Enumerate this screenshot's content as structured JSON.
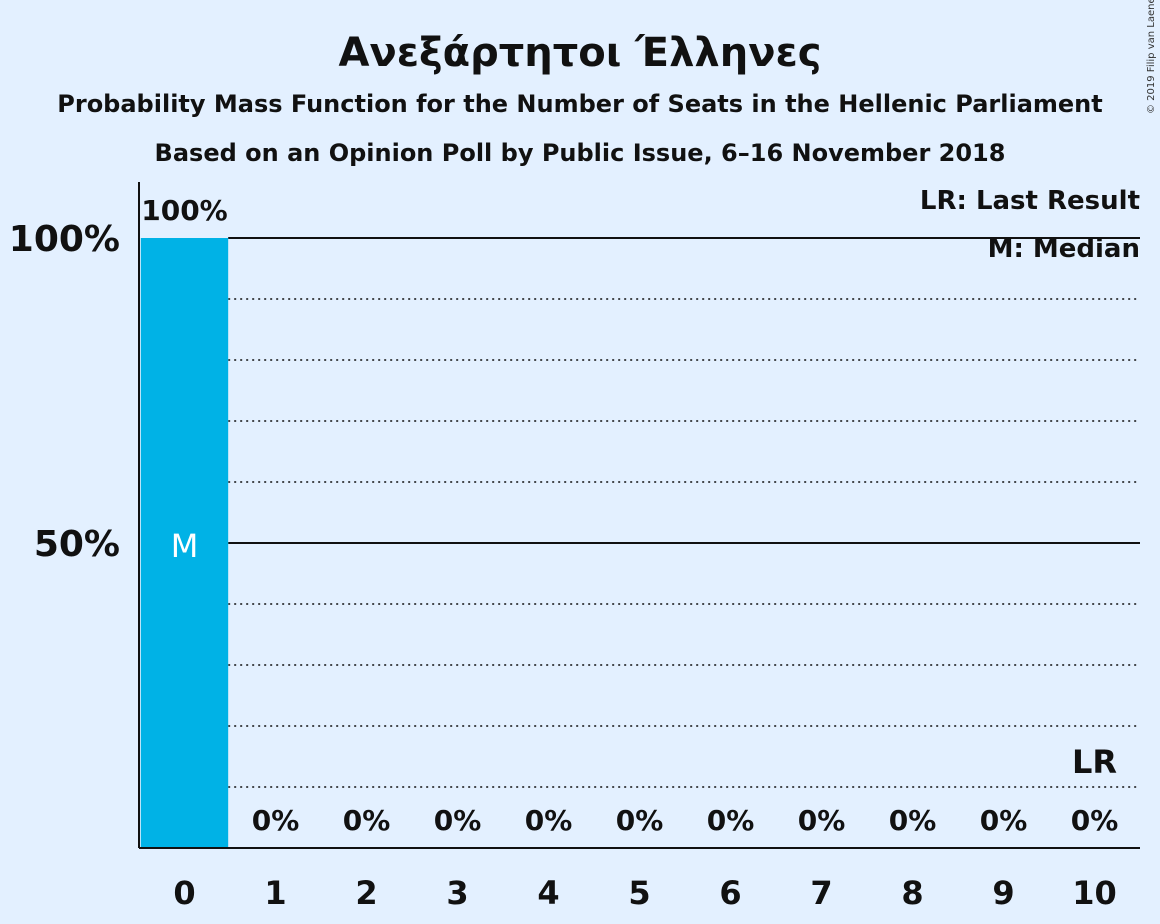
{
  "title": "Ανεξάρτητοι Έλληνες",
  "subtitle1": "Probability Mass Function for the Number of Seats in the Hellenic Parliament",
  "subtitle2": "Based on an Opinion Poll by Public Issue, 6–16 November 2018",
  "copyright": "© 2019 Filip van Laenen",
  "legend": {
    "last_result": "LR: Last Result",
    "median": "M: Median"
  },
  "colors": {
    "background": "#e3f0ff",
    "bar": "#00b2e6",
    "text": "#111111"
  },
  "chart_data": {
    "type": "bar",
    "categories": [
      "0",
      "1",
      "2",
      "3",
      "4",
      "5",
      "6",
      "7",
      "8",
      "9",
      "10"
    ],
    "values": [
      100,
      0,
      0,
      0,
      0,
      0,
      0,
      0,
      0,
      0,
      0
    ],
    "data_labels": [
      "100%",
      "0%",
      "0%",
      "0%",
      "0%",
      "0%",
      "0%",
      "0%",
      "0%",
      "0%",
      "0%"
    ],
    "ylim": [
      0,
      100
    ],
    "yticks": [
      {
        "value": 50,
        "label": "50%"
      },
      {
        "value": 100,
        "label": "100%"
      }
    ],
    "grid": "dotted every 10%, solid at 50% and 100%",
    "median_category": "0",
    "median_marker": "M",
    "last_result_category": "10",
    "last_result_marker": "LR",
    "legend_position": "top-right"
  }
}
